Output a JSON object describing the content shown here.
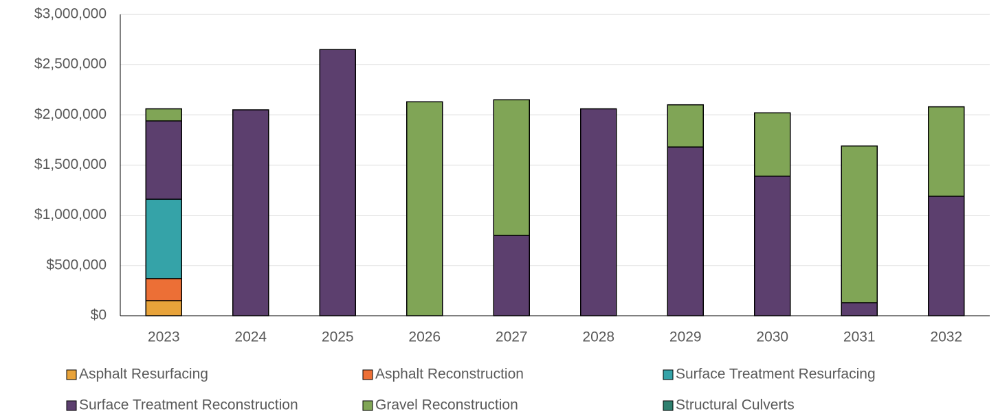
{
  "chart_data": {
    "type": "stacked_bar",
    "categories": [
      "2023",
      "2024",
      "2025",
      "2026",
      "2027",
      "2028",
      "2029",
      "2030",
      "2031",
      "2032"
    ],
    "series": [
      {
        "name": "Asphalt Resurfacing",
        "color": "#e8a33a",
        "values": [
          150000,
          0,
          0,
          0,
          0,
          0,
          0,
          0,
          0,
          0
        ]
      },
      {
        "name": "Asphalt Reconstruction",
        "color": "#ec6f36",
        "values": [
          220000,
          0,
          0,
          0,
          0,
          0,
          0,
          0,
          0,
          0
        ]
      },
      {
        "name": "Surface Treatment Resurfacing",
        "color": "#35a3a8",
        "values": [
          790000,
          0,
          0,
          0,
          0,
          0,
          0,
          0,
          0,
          0
        ]
      },
      {
        "name": "Surface Treatment Reconstruction",
        "color": "#5c3f6e",
        "values": [
          780000,
          2050000,
          2650000,
          0,
          800000,
          2060000,
          1680000,
          1390000,
          130000,
          1190000
        ]
      },
      {
        "name": "Gravel Reconstruction",
        "color": "#80a556",
        "values": [
          120000,
          0,
          0,
          2130000,
          1350000,
          0,
          420000,
          630000,
          1560000,
          890000
        ]
      },
      {
        "name": "Structural Culverts",
        "color": "#2e7f6e",
        "values": [
          0,
          0,
          0,
          0,
          0,
          0,
          0,
          0,
          0,
          0
        ]
      }
    ],
    "ylim": [
      0,
      3000000
    ],
    "yticks": [
      {
        "value": 0,
        "label": "$0"
      },
      {
        "value": 500000,
        "label": "$500,000"
      },
      {
        "value": 1000000,
        "label": "$1,000,000"
      },
      {
        "value": 1500000,
        "label": "$1,500,000"
      },
      {
        "value": 2000000,
        "label": "$2,000,000"
      },
      {
        "value": 2500000,
        "label": "$2,500,000"
      },
      {
        "value": 3000000,
        "label": "$3,000,000"
      }
    ],
    "grid": true,
    "legend": "bottom"
  }
}
